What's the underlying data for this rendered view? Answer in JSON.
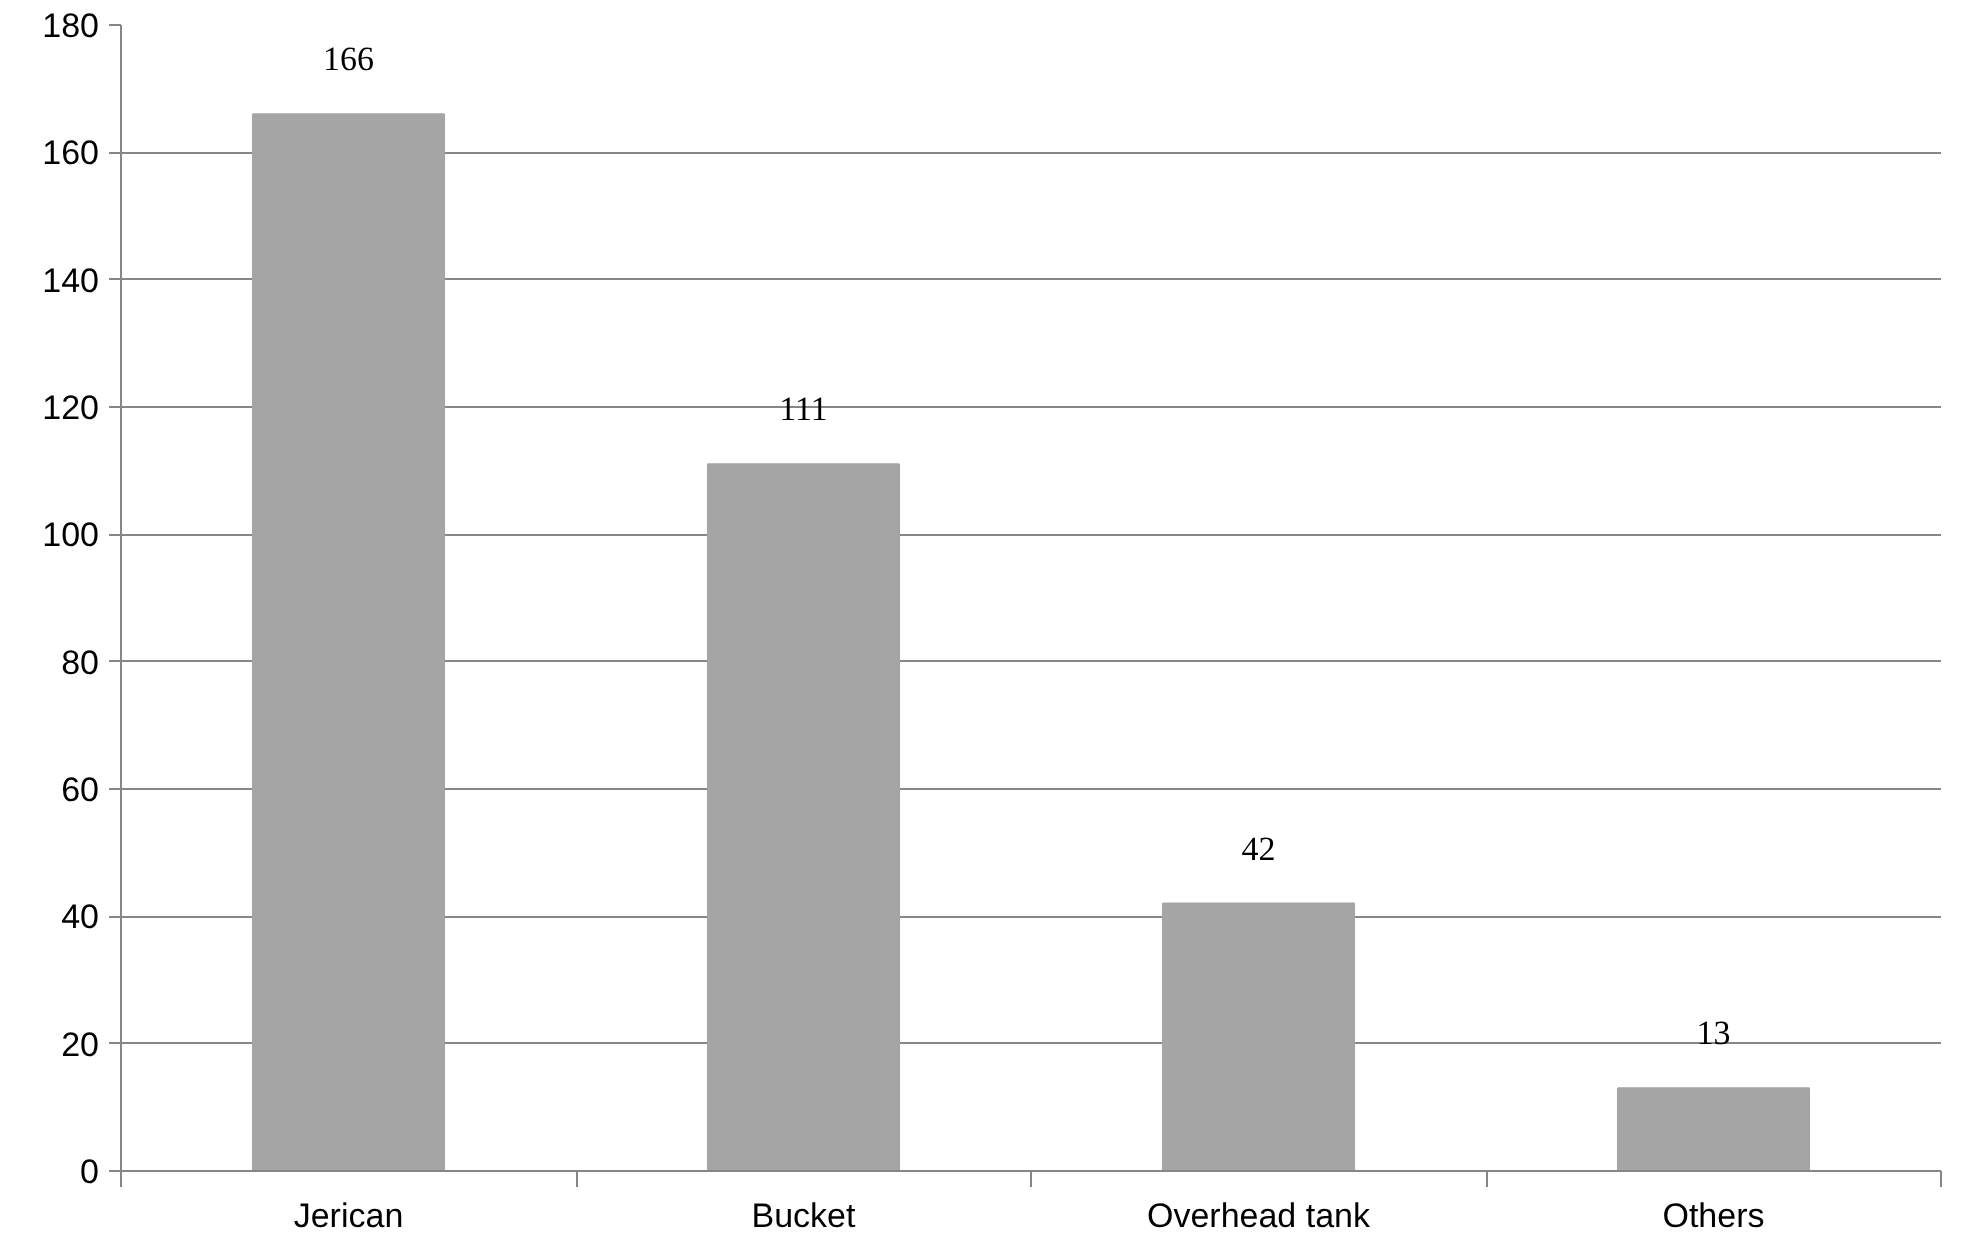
{
  "chart_data": {
    "type": "bar",
    "categories": [
      "Jerican",
      "Bucket",
      "Overhead tank",
      "Others"
    ],
    "values": [
      166,
      111,
      42,
      13
    ],
    "color": "#a5a5a5",
    "ylim": [
      0,
      180
    ],
    "yticks": [
      0,
      20,
      40,
      60,
      80,
      100,
      120,
      140,
      160,
      180
    ],
    "grid": "y",
    "data_labels": true
  }
}
